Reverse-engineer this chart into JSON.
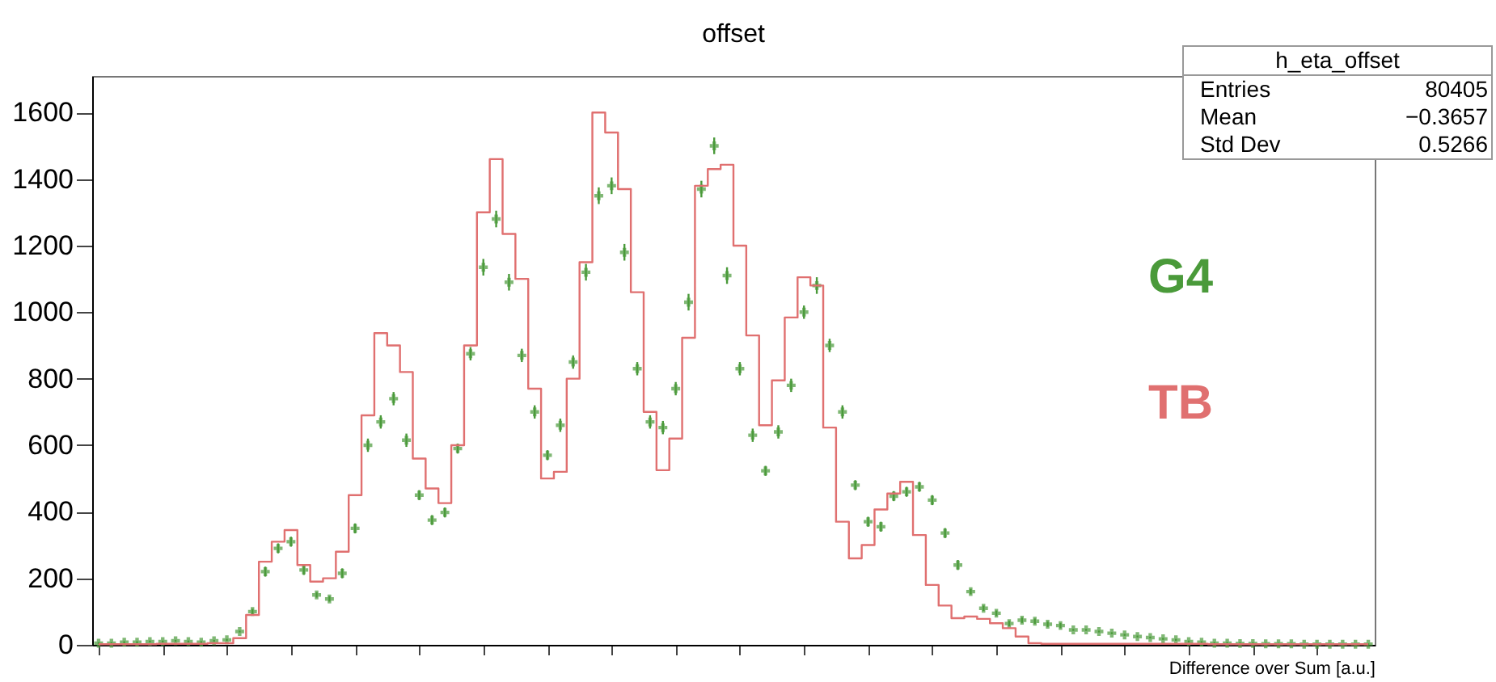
{
  "chart_data": {
    "type": "step",
    "title": "offset",
    "xlabel": "Difference over Sum [a.u.]",
    "annotations": [
      "h_eta_offset",
      "Entries",
      "80405",
      "Mean",
      "−0.3657",
      "Std Dev",
      "0.5266"
    ],
    "categories": [
      null,
      null,
      null,
      null,
      null,
      null,
      null,
      null,
      null,
      null,
      null,
      null,
      null,
      null,
      null,
      null,
      null,
      null,
      null,
      null,
      null,
      null,
      null,
      null,
      null,
      null,
      null,
      null,
      null,
      null,
      null,
      null,
      null,
      null,
      null,
      null,
      null,
      null,
      null,
      null,
      null,
      null,
      null,
      null,
      null,
      null,
      null,
      null,
      null,
      null,
      null,
      null,
      null,
      null,
      null,
      null,
      null,
      null,
      null,
      null,
      null,
      null,
      null,
      null,
      null,
      null,
      null,
      null,
      null,
      null,
      null,
      null,
      null,
      null,
      null,
      null,
      null,
      null,
      null,
      null,
      null,
      null,
      null,
      null,
      null,
      null,
      null,
      null,
      null,
      null,
      null,
      null,
      null,
      null,
      null,
      null,
      null,
      null,
      null,
      null
    ],
    "series": [
      {
        "name": "G4",
        "type": "scatter",
        "marker": "cross",
        "color": "#4a9a3a",
        "values": [
          5,
          5,
          8,
          8,
          10,
          10,
          12,
          10,
          8,
          12,
          15,
          40,
          100,
          220,
          290,
          310,
          225,
          150,
          138,
          215,
          350,
          600,
          670,
          740,
          615,
          450,
          375,
          398,
          590,
          875,
          1135,
          1280,
          1090,
          870,
          700,
          570,
          660,
          850,
          1120,
          1350,
          1380,
          1180,
          830,
          670,
          653,
          770,
          1030,
          1370,
          1500,
          1110,
          830,
          630,
          523,
          640,
          780,
          1000,
          1080,
          900,
          700,
          480,
          370,
          355,
          447,
          460,
          475,
          435,
          336,
          240,
          160,
          110,
          95,
          64,
          74,
          71,
          62,
          58,
          45,
          45,
          40,
          35,
          30,
          25,
          22,
          18,
          15,
          10,
          8,
          5,
          5,
          4,
          4,
          3,
          3,
          3,
          2,
          2,
          2,
          2,
          2,
          2
        ],
        "errors": [
          3,
          3,
          3,
          3,
          3,
          3,
          3,
          3,
          3,
          3,
          3,
          3,
          8,
          15,
          15,
          15,
          15,
          8,
          8,
          15,
          15,
          20,
          20,
          20,
          20,
          15,
          15,
          15,
          15,
          20,
          25,
          25,
          25,
          20,
          20,
          15,
          20,
          20,
          25,
          25,
          25,
          25,
          20,
          20,
          20,
          20,
          25,
          25,
          25,
          25,
          20,
          20,
          15,
          20,
          20,
          20,
          25,
          20,
          20,
          15,
          15,
          15,
          15,
          15,
          15,
          15,
          15,
          15,
          8,
          8,
          8,
          8,
          8,
          8,
          8,
          8,
          3,
          3,
          3,
          3,
          3,
          3,
          3,
          3,
          3,
          3,
          3,
          3,
          3,
          3,
          3,
          3,
          3,
          3,
          3,
          3,
          3,
          3,
          3,
          3
        ]
      },
      {
        "name": "TB",
        "color": "#e07070",
        "values": [
          2,
          2,
          2,
          2,
          2,
          3,
          3,
          3,
          3,
          5,
          5,
          20,
          90,
          250,
          310,
          345,
          240,
          190,
          200,
          280,
          450,
          690,
          937,
          900,
          820,
          560,
          470,
          426,
          600,
          900,
          1300,
          1460,
          1235,
          1100,
          770,
          500,
          520,
          800,
          1150,
          1600,
          1540,
          1370,
          1060,
          700,
          525,
          620,
          923,
          1380,
          1430,
          1443,
          1200,
          930,
          660,
          795,
          984,
          1105,
          1080,
          653,
          370,
          260,
          300,
          407,
          455,
          490,
          330,
          180,
          118,
          80,
          85,
          78,
          65,
          50,
          25,
          5,
          3,
          3,
          3,
          3,
          3,
          3,
          3,
          3,
          3,
          3,
          3,
          3,
          3,
          2,
          2,
          2,
          2,
          2,
          2,
          2,
          2,
          2,
          2,
          2,
          2,
          2
        ]
      }
    ],
    "ylim": [
      0,
      1710
    ],
    "yticks": [
      0,
      200,
      400,
      600,
      800,
      1000,
      1200,
      1400,
      1600
    ],
    "legend": "right",
    "tick_labels": "y"
  }
}
